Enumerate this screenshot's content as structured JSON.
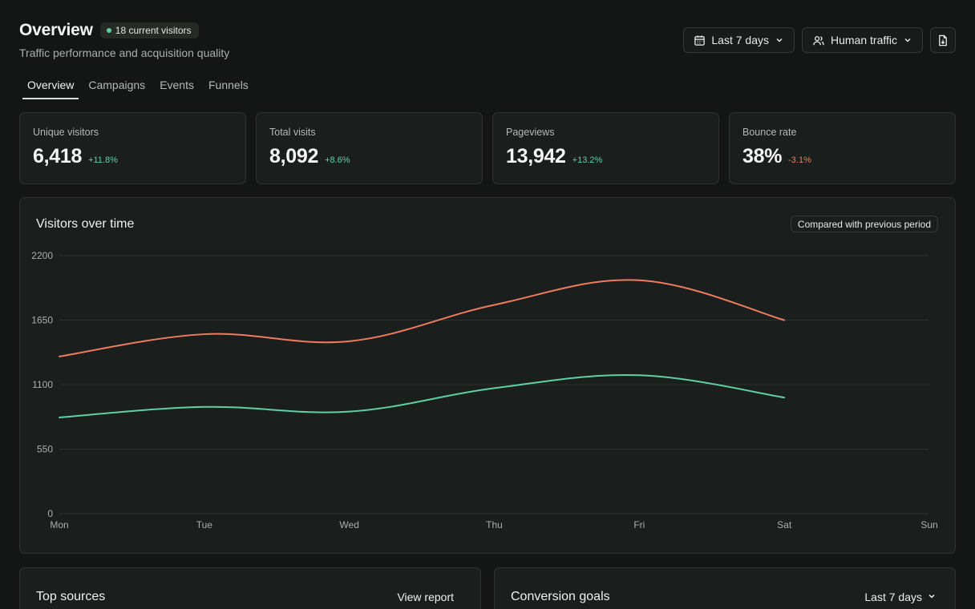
{
  "header": {
    "title": "Overview",
    "live_badge": "18 current visitors",
    "subtitle": "Traffic performance and acquisition quality"
  },
  "controls": {
    "date_range": "Last 7 days",
    "traffic_filter": "Human traffic",
    "icons": [
      "calendar-icon",
      "users-icon",
      "chevron-down-icon",
      "export-icon"
    ]
  },
  "tabs": [
    {
      "label": "Overview",
      "active": true
    },
    {
      "label": "Campaigns",
      "active": false
    },
    {
      "label": "Events",
      "active": false
    },
    {
      "label": "Funnels",
      "active": false
    }
  ],
  "metrics": [
    {
      "label": "Unique visitors",
      "value": "6,418",
      "delta": "+11.8%",
      "trend": "up"
    },
    {
      "label": "Total visits",
      "value": "8,092",
      "delta": "+8.6%",
      "trend": "up"
    },
    {
      "label": "Pageviews",
      "value": "13,942",
      "delta": "+13.2%",
      "trend": "up"
    },
    {
      "label": "Bounce rate",
      "value": "38%",
      "delta": "-3.1%",
      "trend": "down"
    }
  ],
  "chart_card": {
    "title": "Visitors over time",
    "compare_label": "Compared with previous period"
  },
  "chart_data": {
    "type": "line",
    "categories": [
      "Mon",
      "Tue",
      "Wed",
      "Thu",
      "Fri",
      "Sat",
      "Sun"
    ],
    "yticks": [
      0,
      550,
      1100,
      1650,
      2200
    ],
    "ylim": [
      0,
      2200
    ],
    "grid": true,
    "series": [
      {
        "color": "#ee7b5f",
        "values": [
          1340,
          1530,
          1470,
          1780,
          1990,
          1650,
          null
        ]
      },
      {
        "color": "#5fd0a6",
        "values": [
          820,
          910,
          870,
          1070,
          1180,
          990,
          null
        ]
      }
    ]
  },
  "bottom_cards": [
    {
      "title": "Top sources",
      "action": "View report"
    },
    {
      "title": "Conversion goals",
      "action": "Last 7 days"
    }
  ],
  "colors": {
    "background": "#141615",
    "card": "#1a1e1c",
    "accent_green": "#5fd0a6",
    "accent_coral": "#ee7b5f"
  }
}
